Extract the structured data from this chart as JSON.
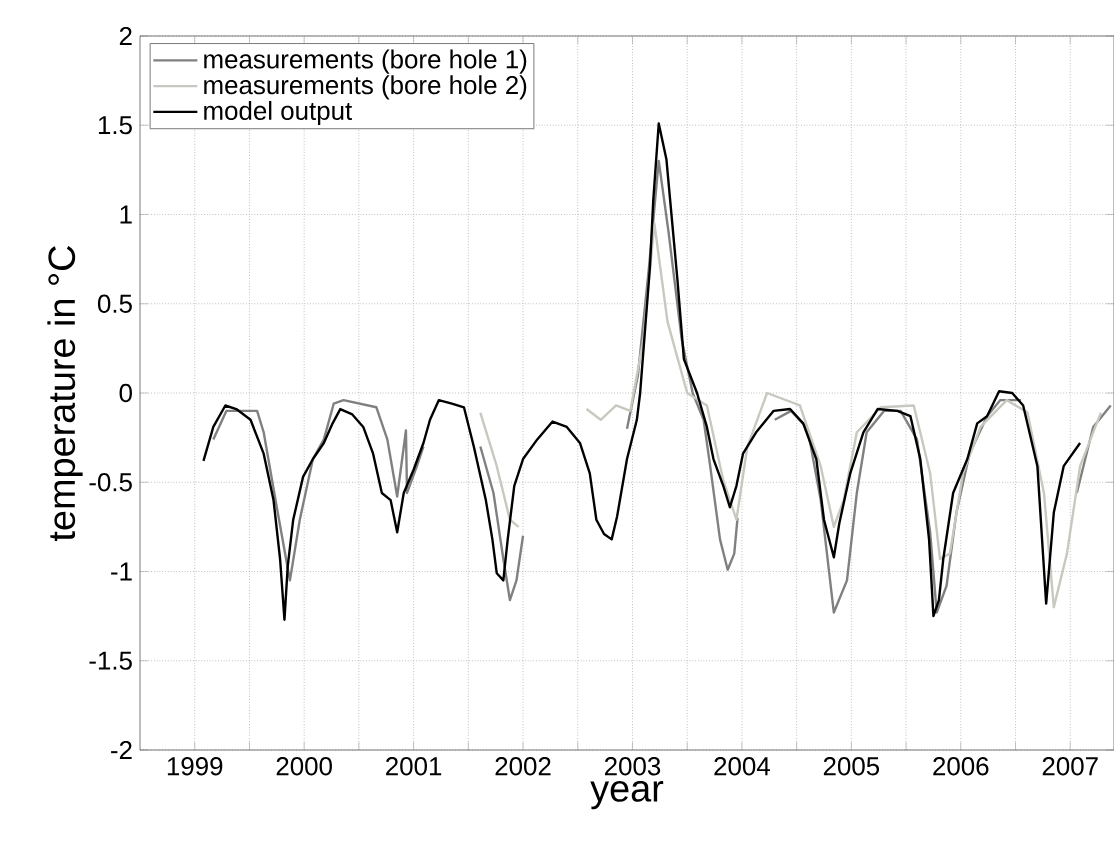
{
  "chart_data": {
    "type": "line",
    "xlabel": "year",
    "ylabel": "temperature in °C",
    "xlim": [
      1998.5,
      2007.4
    ],
    "ylim": [
      -2,
      2
    ],
    "xticks": [
      1999,
      {
        "value": 1999.5,
        "label": null
      },
      2000,
      {
        "value": 2000.5,
        "label": null
      },
      2001,
      {
        "value": 2001.5,
        "label": null
      },
      2002,
      {
        "value": 2002.5,
        "label": null
      },
      2003,
      {
        "value": 2003.5,
        "label": null
      },
      2004,
      {
        "value": 2004.5,
        "label": null
      },
      2005,
      {
        "value": 2005.5,
        "label": null
      },
      2006,
      {
        "value": 2006.5,
        "label": null
      },
      2007
    ],
    "yticks": [
      -2,
      -1.5,
      -1,
      -0.5,
      0,
      0.5,
      1,
      1.5,
      2
    ],
    "grid": true,
    "legend": "top left",
    "line_style": "solid",
    "marker": "none",
    "series": [
      {
        "name": "measurements (bore hole 1)",
        "color": "#808080",
        "x": [
          1999.17,
          1999.29,
          1999.57,
          1999.63,
          1999.75,
          1999.87,
          1999.96,
          2000.08,
          2000.18,
          2000.27,
          2000.36,
          2000.66,
          2000.76,
          2000.85,
          2000.93,
          2000.94,
          2001.03,
          2001.09,
          2001.3,
          2001.61,
          2001.73,
          2001.82,
          2001.88,
          2001.94,
          2002.0,
          2002.85,
          2002.95,
          2003.05,
          2003.15,
          2003.24,
          2003.33,
          2003.45,
          2003.55,
          2003.65,
          2003.71,
          2003.8,
          2003.87,
          2003.93,
          2003.96,
          2004.2,
          2004.3,
          2004.45,
          2004.6,
          2004.72,
          2004.84,
          2004.96,
          2005.05,
          2005.14,
          2005.3,
          2005.45,
          2005.6,
          2005.72,
          2005.78,
          2005.87,
          2005.96,
          2006.08,
          2006.24,
          2006.36,
          2006.55,
          2006.7,
          2007.06,
          2007.21,
          2007.37
        ],
        "values": [
          -0.26,
          -0.1,
          -0.1,
          -0.22,
          -0.64,
          -1.05,
          -0.71,
          -0.37,
          -0.26,
          -0.06,
          -0.04,
          -0.08,
          -0.26,
          -0.58,
          -0.21,
          -0.56,
          -0.41,
          -0.3,
          null,
          -0.3,
          -0.56,
          -0.93,
          -1.16,
          -1.05,
          -0.8,
          null,
          -0.2,
          0.1,
          0.7,
          1.3,
          0.9,
          0.3,
          0.0,
          -0.15,
          -0.41,
          -0.82,
          -0.99,
          -0.9,
          -0.7,
          null,
          -0.15,
          -0.1,
          -0.2,
          -0.6,
          -1.23,
          -1.05,
          -0.56,
          -0.22,
          -0.1,
          -0.1,
          -0.26,
          -0.78,
          -1.23,
          -1.08,
          -0.67,
          -0.34,
          -0.13,
          -0.04,
          -0.04,
          null,
          -0.56,
          -0.19,
          -0.07
        ]
      },
      {
        "name": "measurements (bore hole 2)",
        "color": "#c8c8c0",
        "x": [
          2001.61,
          2001.76,
          2001.88,
          2001.96,
          2002.28,
          2002.58,
          2002.71,
          2002.85,
          2002.98,
          2003.1,
          2003.2,
          2003.32,
          2003.5,
          2003.68,
          2003.83,
          2003.95,
          2004.05,
          2004.23,
          2004.53,
          2004.72,
          2004.84,
          2004.93,
          2005.05,
          2005.27,
          2005.57,
          2005.72,
          2005.81,
          2005.9,
          2006.02,
          2006.18,
          2006.42,
          2006.61,
          2006.76,
          2006.85,
          2006.97,
          2007.09,
          2007.28
        ],
        "values": [
          -0.11,
          -0.41,
          -0.71,
          -0.75,
          null,
          -0.09,
          -0.15,
          -0.07,
          -0.1,
          0.3,
          0.95,
          0.4,
          0.0,
          -0.07,
          -0.49,
          -0.71,
          -0.3,
          0.0,
          -0.07,
          -0.41,
          -0.75,
          -0.6,
          -0.22,
          -0.08,
          -0.07,
          -0.45,
          -0.93,
          -0.9,
          -0.45,
          -0.19,
          -0.04,
          -0.11,
          -0.56,
          -1.2,
          -0.9,
          -0.41,
          -0.11
        ]
      },
      {
        "name": "model output",
        "color": "#000000",
        "x": [
          1999.08,
          1999.17,
          1999.28,
          1999.38,
          1999.51,
          1999.63,
          1999.72,
          1999.78,
          1999.82,
          1999.85,
          1999.9,
          1999.99,
          2000.08,
          2000.18,
          2000.26,
          2000.33,
          2000.44,
          2000.54,
          2000.63,
          2000.71,
          2000.79,
          2000.85,
          2000.91,
          2001.0,
          2001.09,
          2001.15,
          2001.23,
          2001.35,
          2001.46,
          2001.55,
          2001.66,
          2001.72,
          2001.76,
          2001.82,
          2001.86,
          2001.92,
          2002.0,
          2002.13,
          2002.27,
          2002.4,
          2002.52,
          2002.61,
          2002.67,
          2002.74,
          2002.81,
          2002.86,
          2002.95,
          2003.04,
          2003.07,
          2003.16,
          2003.19,
          2003.24,
          2003.31,
          2003.41,
          2003.47,
          2003.59,
          2003.68,
          2003.74,
          2003.83,
          2003.89,
          2003.95,
          2004.01,
          2004.13,
          2004.29,
          2004.44,
          2004.56,
          2004.68,
          2004.75,
          2004.84,
          2004.89,
          2004.99,
          2005.11,
          2005.24,
          2005.42,
          2005.54,
          2005.63,
          2005.71,
          2005.75,
          2005.8,
          2005.84,
          2005.93,
          2006.06,
          2006.15,
          2006.24,
          2006.35,
          2006.47,
          2006.57,
          2006.7,
          2006.78,
          2006.85,
          2006.94,
          2007.09
        ],
        "values": [
          -0.38,
          -0.19,
          -0.07,
          -0.09,
          -0.15,
          -0.34,
          -0.6,
          -0.93,
          -1.27,
          -0.97,
          -0.71,
          -0.47,
          -0.37,
          -0.28,
          -0.17,
          -0.09,
          -0.12,
          -0.19,
          -0.34,
          -0.56,
          -0.6,
          -0.78,
          -0.56,
          -0.43,
          -0.28,
          -0.15,
          -0.04,
          -0.06,
          -0.08,
          -0.3,
          -0.6,
          -0.82,
          -1.01,
          -1.05,
          -0.82,
          -0.52,
          -0.37,
          -0.26,
          -0.16,
          -0.19,
          -0.28,
          -0.45,
          -0.71,
          -0.79,
          -0.82,
          -0.69,
          -0.37,
          -0.15,
          0.0,
          0.71,
          1.08,
          1.51,
          1.31,
          0.64,
          0.19,
          0.0,
          -0.19,
          -0.37,
          -0.52,
          -0.64,
          -0.52,
          -0.34,
          -0.22,
          -0.1,
          -0.09,
          -0.17,
          -0.37,
          -0.71,
          -0.92,
          -0.73,
          -0.45,
          -0.22,
          -0.09,
          -0.1,
          -0.13,
          -0.37,
          -0.82,
          -1.25,
          -1.16,
          -0.93,
          -0.56,
          -0.37,
          -0.17,
          -0.13,
          0.01,
          0.0,
          -0.07,
          -0.41,
          -1.18,
          -0.67,
          -0.41,
          -0.28
        ]
      }
    ]
  }
}
